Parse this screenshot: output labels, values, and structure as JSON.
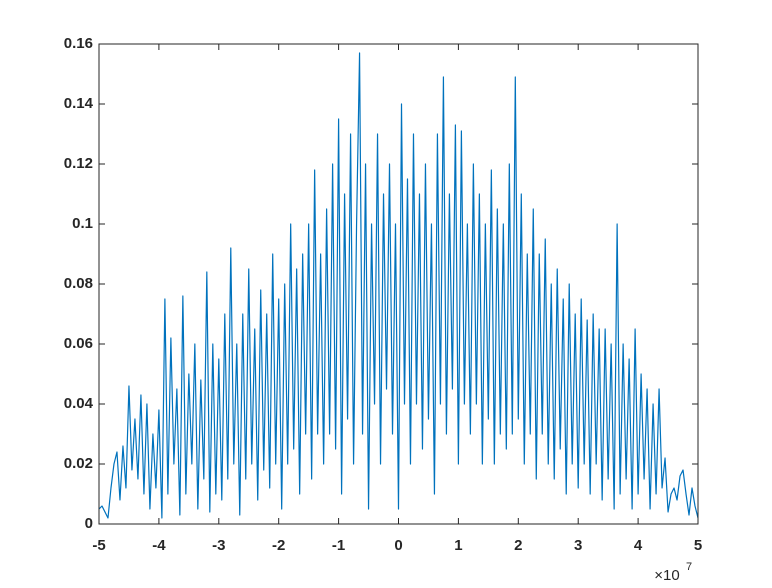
{
  "chart_data": {
    "type": "line",
    "x": [
      -50000000.0,
      -49500000.0,
      -49000000.0,
      -48500000.0,
      -48000000.0,
      -47500000.0,
      -47000000.0,
      -46500000.0,
      -46000000.0,
      -45500000.0,
      -45000000.0,
      -44500000.0,
      -44000000.0,
      -43500000.0,
      -43000000.0,
      -42500000.0,
      -42000000.0,
      -41500000.0,
      -41000000.0,
      -40500000.0,
      -40000000.0,
      -39500000.0,
      -39000000.0,
      -38500000.0,
      -38000000.0,
      -37500000.0,
      -37000000.0,
      -36500000.0,
      -36000000.0,
      -35500000.0,
      -35000000.0,
      -34500000.0,
      -34000000.0,
      -33500000.0,
      -33000000.0,
      -32500000.0,
      -32000000.0,
      -31500000.0,
      -31000000.0,
      -30500000.0,
      -30000000.0,
      -29500000.0,
      -29000000.0,
      -28500000.0,
      -28000000.0,
      -27500000.0,
      -27000000.0,
      -26500000.0,
      -26000000.0,
      -25500000.0,
      -25000000.0,
      -24500000.0,
      -24000000.0,
      -23500000.0,
      -23000000.0,
      -22500000.0,
      -22000000.0,
      -21500000.0,
      -21000000.0,
      -20500000.0,
      -20000000.0,
      -19500000.0,
      -19000000.0,
      -18500000.0,
      -18000000.0,
      -17500000.0,
      -17000000.0,
      -16500000.0,
      -16000000.0,
      -15500000.0,
      -15000000.0,
      -14500000.0,
      -14000000.0,
      -13500000.0,
      -13000000.0,
      -12500000.0,
      -12000000.0,
      -11500000.0,
      -11000000.0,
      -10500000.0,
      -10000000.0,
      -9500000.0,
      -9000000.0,
      -8500000.0,
      -8000000.0,
      -7500000.0,
      -7000000.0,
      -6500000.0,
      -6000000.0,
      -5500000.0,
      -5000000.0,
      -4500000.0,
      -4000000.0,
      -3500000.0,
      -3000000.0,
      -2500000.0,
      -2000000.0,
      -1500000.0,
      -1000000.0,
      -500000.0,
      0,
      500000.0,
      1000000.0,
      1500000.0,
      2000000.0,
      2500000.0,
      3000000.0,
      3500000.0,
      4000000.0,
      4500000.0,
      5000000.0,
      5500000.0,
      6000000.0,
      6500000.0,
      7000000.0,
      7500000.0,
      8000000.0,
      8500000.0,
      9000000.0,
      9500000.0,
      10000000.0,
      10500000.0,
      11000000.0,
      11500000.0,
      12000000.0,
      12500000.0,
      13000000.0,
      13500000.0,
      14000000.0,
      14500000.0,
      15000000.0,
      15500000.0,
      16000000.0,
      16500000.0,
      17000000.0,
      17500000.0,
      18000000.0,
      18500000.0,
      19000000.0,
      19500000.0,
      20000000.0,
      20500000.0,
      21000000.0,
      21500000.0,
      22000000.0,
      22500000.0,
      23000000.0,
      23500000.0,
      24000000.0,
      24500000.0,
      25000000.0,
      25500000.0,
      26000000.0,
      26500000.0,
      27000000.0,
      27500000.0,
      28000000.0,
      28500000.0,
      29000000.0,
      29500000.0,
      30000000.0,
      30500000.0,
      31000000.0,
      31500000.0,
      32000000.0,
      32500000.0,
      33000000.0,
      33500000.0,
      34000000.0,
      34500000.0,
      35000000.0,
      35500000.0,
      36000000.0,
      36500000.0,
      37000000.0,
      37500000.0,
      38000000.0,
      38500000.0,
      39000000.0,
      39500000.0,
      40000000.0,
      40500000.0,
      41000000.0,
      41500000.0,
      42000000.0,
      42500000.0,
      43000000.0,
      43500000.0,
      44000000.0,
      44500000.0,
      45000000.0,
      45500000.0,
      46000000.0,
      46500000.0,
      47000000.0,
      47500000.0,
      48000000.0,
      48500000.0,
      49000000.0,
      49500000.0,
      50000000.0
    ],
    "series": [
      {
        "color": "#0072bd",
        "values": [
          0.005,
          0.006,
          0.004,
          0.002,
          0.012,
          0.02,
          0.024,
          0.008,
          0.026,
          0.012,
          0.046,
          0.018,
          0.035,
          0.015,
          0.043,
          0.01,
          0.04,
          0.005,
          0.03,
          0.012,
          0.038,
          0.002,
          0.075,
          0.01,
          0.062,
          0.02,
          0.045,
          0.003,
          0.076,
          0.01,
          0.05,
          0.02,
          0.06,
          0.005,
          0.048,
          0.015,
          0.084,
          0.004,
          0.06,
          0.01,
          0.055,
          0.008,
          0.07,
          0.015,
          0.092,
          0.02,
          0.06,
          0.003,
          0.07,
          0.015,
          0.085,
          0.02,
          0.065,
          0.008,
          0.078,
          0.018,
          0.07,
          0.012,
          0.09,
          0.02,
          0.075,
          0.005,
          0.08,
          0.02,
          0.1,
          0.025,
          0.085,
          0.01,
          0.09,
          0.03,
          0.1,
          0.015,
          0.118,
          0.03,
          0.09,
          0.02,
          0.105,
          0.03,
          0.12,
          0.025,
          0.135,
          0.01,
          0.11,
          0.035,
          0.13,
          0.02,
          0.1,
          0.157,
          0.03,
          0.12,
          0.005,
          0.1,
          0.04,
          0.13,
          0.02,
          0.11,
          0.045,
          0.12,
          0.03,
          0.1,
          0.005,
          0.14,
          0.04,
          0.115,
          0.02,
          0.13,
          0.04,
          0.11,
          0.025,
          0.12,
          0.035,
          0.1,
          0.01,
          0.13,
          0.04,
          0.149,
          0.03,
          0.11,
          0.045,
          0.133,
          0.02,
          0.131,
          0.04,
          0.1,
          0.03,
          0.12,
          0.04,
          0.11,
          0.02,
          0.1,
          0.035,
          0.118,
          0.02,
          0.105,
          0.03,
          0.1,
          0.025,
          0.12,
          0.03,
          0.149,
          0.035,
          0.11,
          0.02,
          0.09,
          0.03,
          0.105,
          0.015,
          0.09,
          0.03,
          0.095,
          0.02,
          0.08,
          0.015,
          0.085,
          0.025,
          0.075,
          0.01,
          0.08,
          0.02,
          0.07,
          0.012,
          0.075,
          0.02,
          0.068,
          0.01,
          0.07,
          0.02,
          0.065,
          0.008,
          0.065,
          0.015,
          0.06,
          0.005,
          0.1,
          0.01,
          0.06,
          0.015,
          0.055,
          0.005,
          0.065,
          0.01,
          0.05,
          0.015,
          0.045,
          0.005,
          0.04,
          0.01,
          0.045,
          0.012,
          0.022,
          0.004,
          0.01,
          0.012,
          0.008,
          0.016,
          0.018,
          0.01,
          0.003,
          0.012,
          0.006,
          0.002
        ]
      }
    ],
    "xlim": [
      -50000000.0,
      50000000.0
    ],
    "xticks": [
      {
        "value": -50000000.0,
        "label": "-5"
      },
      {
        "value": -40000000.0,
        "label": "-4"
      },
      {
        "value": -30000000.0,
        "label": "-3"
      },
      {
        "value": -20000000.0,
        "label": "-2"
      },
      {
        "value": -10000000.0,
        "label": "-1"
      },
      0,
      {
        "value": 10000000.0,
        "label": "1"
      },
      {
        "value": 20000000.0,
        "label": "2"
      },
      {
        "value": 30000000.0,
        "label": "3"
      },
      {
        "value": 40000000.0,
        "label": "4"
      },
      {
        "value": 50000000.0,
        "label": "5"
      }
    ],
    "x_exponent": {
      "base": "×10",
      "power": "7"
    },
    "ylim": [
      0,
      0.16
    ],
    "yticks": [
      0,
      0.02,
      0.04,
      0.06,
      0.08,
      0.1,
      0.12,
      0.14,
      0.16
    ],
    "grid": false
  }
}
